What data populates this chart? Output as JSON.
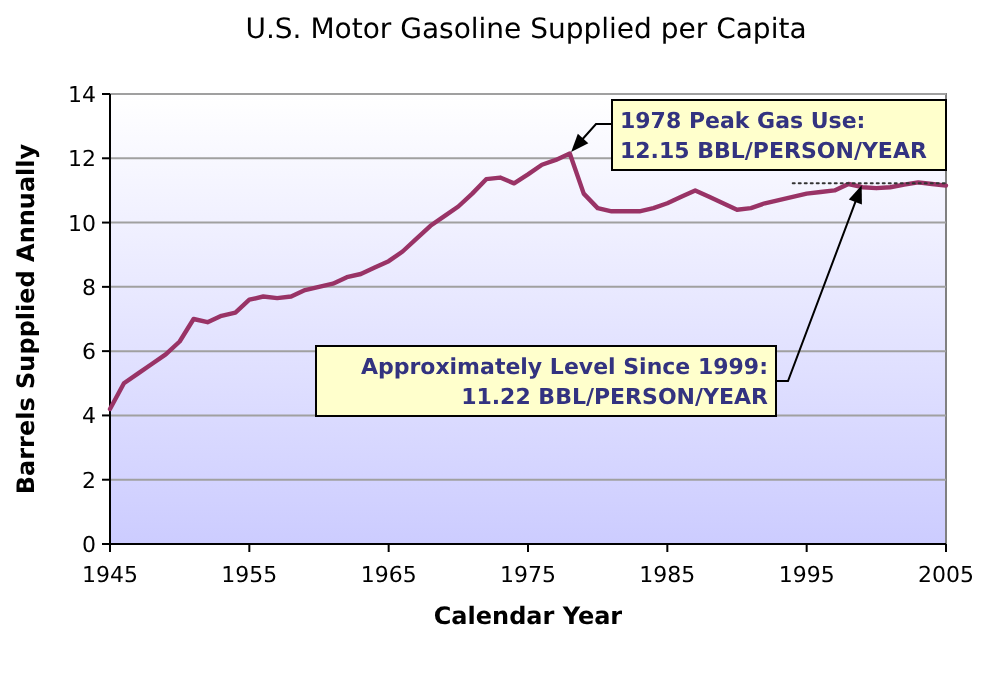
{
  "chart_data": {
    "type": "line",
    "title": "U.S. Motor Gasoline Supplied per Capita",
    "xlabel": "Calendar Year",
    "ylabel": "Barrels Supplied Annually",
    "xlim": [
      1945,
      2005
    ],
    "xticks": [
      1945,
      1955,
      1965,
      1975,
      1985,
      1995,
      2005
    ],
    "ylim": [
      0,
      14
    ],
    "yticks": [
      0,
      2,
      4,
      6,
      8,
      10,
      12,
      14
    ],
    "grid": "y",
    "series": [
      {
        "color": "#993366",
        "x": [
          1945,
          1946,
          1947,
          1948,
          1949,
          1950,
          1951,
          1952,
          1953,
          1954,
          1955,
          1956,
          1957,
          1958,
          1959,
          1960,
          1961,
          1962,
          1963,
          1964,
          1965,
          1966,
          1967,
          1968,
          1969,
          1970,
          1971,
          1972,
          1973,
          1974,
          1975,
          1976,
          1977,
          1978,
          1979,
          1980,
          1981,
          1982,
          1983,
          1984,
          1985,
          1986,
          1987,
          1988,
          1989,
          1990,
          1991,
          1992,
          1993,
          1994,
          1995,
          1996,
          1997,
          1998,
          1999,
          2000,
          2001,
          2002,
          2003,
          2004,
          2005
        ],
        "values": [
          4.2,
          5.0,
          5.3,
          5.6,
          5.9,
          6.3,
          7.0,
          6.9,
          7.1,
          7.2,
          7.6,
          7.7,
          7.65,
          7.7,
          7.9,
          8.0,
          8.1,
          8.3,
          8.4,
          8.6,
          8.8,
          9.1,
          9.5,
          9.9,
          10.2,
          10.5,
          10.9,
          11.35,
          11.4,
          11.22,
          11.5,
          11.8,
          11.95,
          12.15,
          10.9,
          10.45,
          10.35,
          10.35,
          10.35,
          10.45,
          10.6,
          10.8,
          11.0,
          10.8,
          10.6,
          10.4,
          10.45,
          10.6,
          10.7,
          10.8,
          10.9,
          10.95,
          11.0,
          11.2,
          11.1,
          11.07,
          11.1,
          11.18,
          11.25,
          11.2,
          11.15
        ]
      },
      {
        "type": "line",
        "line_style": "dotted",
        "color": "#333333",
        "x": [
          1994,
          2005
        ],
        "values": [
          11.22,
          11.22
        ]
      }
    ],
    "annotations": [
      {
        "text": "1978 Peak Gas Use:\n12.15 BBL/PERSON/YEAR",
        "x": 1978,
        "y": 12.15
      },
      {
        "text": "Approximately Level Since 1999:\n11.22 BBL/PERSON/YEAR",
        "x": 1999,
        "y": 11.22
      }
    ]
  }
}
